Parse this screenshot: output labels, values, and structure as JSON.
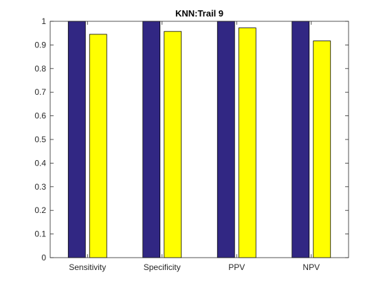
{
  "chart_data": {
    "type": "bar",
    "title": "KNN:Trail 9",
    "xlabel": "",
    "ylabel": "",
    "categories": [
      "Sensitivity",
      "Specificity",
      "PPV",
      "NPV"
    ],
    "series": [
      {
        "color": "#312783",
        "values": [
          1.0,
          1.0,
          1.0,
          1.0
        ]
      },
      {
        "color": "#ffff00",
        "values": [
          0.945,
          0.957,
          0.972,
          0.917
        ]
      }
    ],
    "ylim": [
      0,
      1
    ],
    "yticks": [
      0,
      0.1,
      0.2,
      0.3,
      0.4,
      0.5,
      0.6,
      0.7,
      0.8,
      0.9,
      1
    ],
    "ytick_labels": [
      "0",
      "0.1",
      "0.2",
      "0.3",
      "0.4",
      "0.5",
      "0.6",
      "0.7",
      "0.8",
      "0.9",
      "1"
    ],
    "grid": false,
    "legend": "none"
  }
}
